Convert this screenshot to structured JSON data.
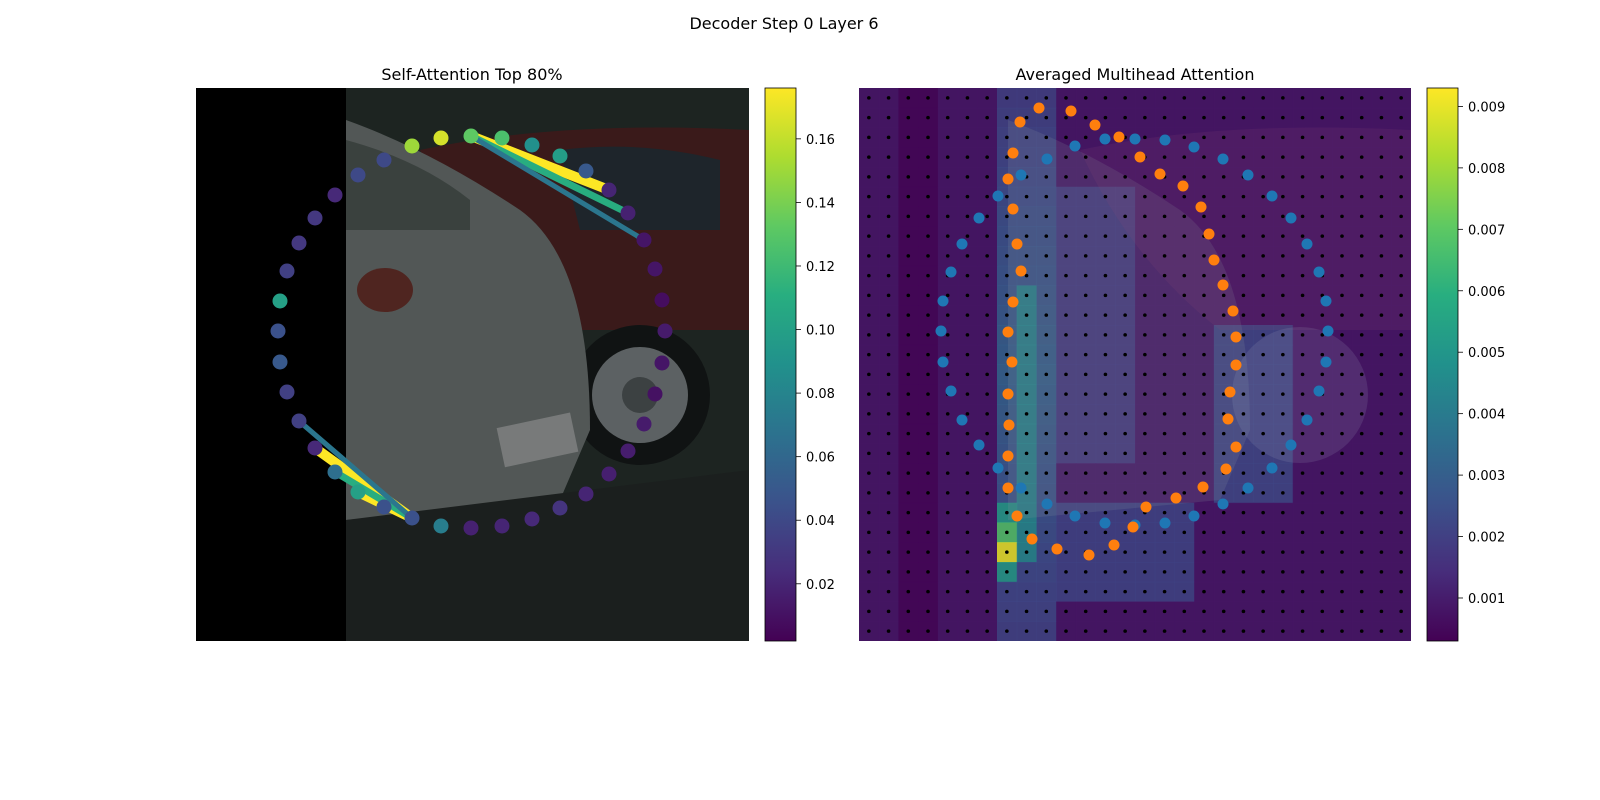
{
  "figure": {
    "suptitle": "Decoder Step 0 Layer 6"
  },
  "chart_data": [
    {
      "type": "scatter",
      "title": "Self-Attention Top 80%",
      "background": "photo of parked cars with a black band on the left",
      "axes_visible": false,
      "colormap": "viridis",
      "colorbar": {
        "ticks": [
          0.02,
          0.04,
          0.06,
          0.08,
          0.1,
          0.12,
          0.14,
          0.16
        ],
        "labels": [
          "0.02",
          "0.04",
          "0.06",
          "0.08",
          "0.10",
          "0.12",
          "0.14",
          "0.16"
        ],
        "range": [
          0.002,
          0.176
        ]
      },
      "image_extent": [
        0,
        880
      ],
      "points": [
        {
          "x": 441,
          "y": 138,
          "v": 0.165
        },
        {
          "x": 471,
          "y": 136,
          "v": 0.132
        },
        {
          "x": 502,
          "y": 138,
          "v": 0.125
        },
        {
          "x": 532,
          "y": 145,
          "v": 0.088
        },
        {
          "x": 560,
          "y": 156,
          "v": 0.098
        },
        {
          "x": 586,
          "y": 171,
          "v": 0.05
        },
        {
          "x": 609,
          "y": 190,
          "v": 0.02
        },
        {
          "x": 628,
          "y": 213,
          "v": 0.018
        },
        {
          "x": 644,
          "y": 240,
          "v": 0.012
        },
        {
          "x": 655,
          "y": 269,
          "v": 0.012
        },
        {
          "x": 662,
          "y": 300,
          "v": 0.008
        },
        {
          "x": 665,
          "y": 331,
          "v": 0.015
        },
        {
          "x": 662,
          "y": 363,
          "v": 0.012
        },
        {
          "x": 655,
          "y": 394,
          "v": 0.01
        },
        {
          "x": 644,
          "y": 424,
          "v": 0.015
        },
        {
          "x": 628,
          "y": 451,
          "v": 0.016
        },
        {
          "x": 609,
          "y": 474,
          "v": 0.017
        },
        {
          "x": 586,
          "y": 494,
          "v": 0.02
        },
        {
          "x": 560,
          "y": 508,
          "v": 0.028
        },
        {
          "x": 532,
          "y": 519,
          "v": 0.022
        },
        {
          "x": 502,
          "y": 526,
          "v": 0.02
        },
        {
          "x": 471,
          "y": 528,
          "v": 0.018
        },
        {
          "x": 441,
          "y": 526,
          "v": 0.075
        },
        {
          "x": 412,
          "y": 518,
          "v": 0.045
        },
        {
          "x": 384,
          "y": 507,
          "v": 0.045
        },
        {
          "x": 358,
          "y": 492,
          "v": 0.1
        },
        {
          "x": 335,
          "y": 472,
          "v": 0.065
        },
        {
          "x": 315,
          "y": 448,
          "v": 0.022
        },
        {
          "x": 299,
          "y": 421,
          "v": 0.035
        },
        {
          "x": 287,
          "y": 392,
          "v": 0.035
        },
        {
          "x": 280,
          "y": 362,
          "v": 0.05
        },
        {
          "x": 278,
          "y": 331,
          "v": 0.045
        },
        {
          "x": 280,
          "y": 301,
          "v": 0.1
        },
        {
          "x": 287,
          "y": 271,
          "v": 0.035
        },
        {
          "x": 299,
          "y": 243,
          "v": 0.03
        },
        {
          "x": 315,
          "y": 218,
          "v": 0.03
        },
        {
          "x": 335,
          "y": 195,
          "v": 0.022
        },
        {
          "x": 358,
          "y": 175,
          "v": 0.04
        },
        {
          "x": 384,
          "y": 160,
          "v": 0.04
        },
        {
          "x": 412,
          "y": 146,
          "v": 0.15
        }
      ],
      "edges": [
        {
          "from": [
            412,
            518
          ],
          "to": [
            358,
            492
          ],
          "v": 0.176
        },
        {
          "from": [
            412,
            518
          ],
          "to": [
            315,
            448
          ],
          "v": 0.176
        },
        {
          "from": [
            412,
            518
          ],
          "to": [
            335,
            472
          ],
          "v": 0.11
        },
        {
          "from": [
            412,
            518
          ],
          "to": [
            299,
            421
          ],
          "v": 0.07
        },
        {
          "from": [
            471,
            136
          ],
          "to": [
            609,
            190
          ],
          "v": 0.176
        },
        {
          "from": [
            471,
            136
          ],
          "to": [
            628,
            213
          ],
          "v": 0.11
        },
        {
          "from": [
            471,
            136
          ],
          "to": [
            644,
            240
          ],
          "v": 0.07
        }
      ]
    },
    {
      "type": "scatter",
      "title": "Averaged Multihead Attention",
      "background": "attention heatmap overlaid on photo",
      "axes_visible": false,
      "colormap": "viridis",
      "colorbar": {
        "ticks": [
          0.001,
          0.002,
          0.003,
          0.004,
          0.005,
          0.006,
          0.007,
          0.008,
          0.009
        ],
        "labels": [
          "0.001",
          "0.002",
          "0.003",
          "0.004",
          "0.005",
          "0.006",
          "0.007",
          "0.008",
          "0.009"
        ],
        "range": [
          0.0003,
          0.0093
        ]
      },
      "grid": {
        "cols": 28,
        "rows": 28
      },
      "series": [
        {
          "color": "#1f77b4",
          "points": [
            [
              1075,
              146
            ],
            [
              1105,
              139
            ],
            [
              1135,
              139
            ],
            [
              1165,
              140
            ],
            [
              1194,
              147
            ],
            [
              1223,
              159
            ],
            [
              1248,
              175
            ],
            [
              1272,
              196
            ],
            [
              1291,
              218
            ],
            [
              1307,
              244
            ],
            [
              1319,
              272
            ],
            [
              1326,
              301
            ],
            [
              1328,
              331
            ],
            [
              1326,
              362
            ],
            [
              1319,
              391
            ],
            [
              1307,
              420
            ],
            [
              1291,
              445
            ],
            [
              1272,
              468
            ],
            [
              1248,
              488
            ],
            [
              1223,
              504
            ],
            [
              1194,
              516
            ],
            [
              1165,
              523
            ],
            [
              1135,
              525
            ],
            [
              1105,
              523
            ],
            [
              1075,
              516
            ],
            [
              1047,
              504
            ],
            [
              1021,
              488
            ],
            [
              998,
              468
            ],
            [
              979,
              445
            ],
            [
              962,
              420
            ],
            [
              951,
              391
            ],
            [
              943,
              362
            ],
            [
              941,
              331
            ],
            [
              943,
              301
            ],
            [
              951,
              272
            ],
            [
              962,
              244
            ],
            [
              979,
              218
            ],
            [
              998,
              196
            ],
            [
              1021,
              175
            ],
            [
              1047,
              159
            ]
          ]
        },
        {
          "color": "#ff7f0e",
          "points": [
            [
              1020,
              122
            ],
            [
              1039,
              108
            ],
            [
              1071,
              111
            ],
            [
              1095,
              125
            ],
            [
              1119,
              137
            ],
            [
              1140,
              157
            ],
            [
              1160,
              174
            ],
            [
              1183,
              186
            ],
            [
              1201,
              207
            ],
            [
              1209,
              234
            ],
            [
              1214,
              260
            ],
            [
              1223,
              285
            ],
            [
              1233,
              311
            ],
            [
              1236,
              337
            ],
            [
              1236,
              365
            ],
            [
              1230,
              392
            ],
            [
              1228,
              419
            ],
            [
              1236,
              447
            ],
            [
              1226,
              469
            ],
            [
              1203,
              487
            ],
            [
              1176,
              498
            ],
            [
              1146,
              507
            ],
            [
              1133,
              527
            ],
            [
              1114,
              545
            ],
            [
              1089,
              555
            ],
            [
              1057,
              549
            ],
            [
              1032,
              539
            ],
            [
              1017,
              516
            ],
            [
              1008,
              488
            ],
            [
              1008,
              456
            ],
            [
              1009,
              425
            ],
            [
              1008,
              394
            ],
            [
              1012,
              362
            ],
            [
              1008,
              332
            ],
            [
              1013,
              302
            ],
            [
              1021,
              271
            ],
            [
              1017,
              244
            ],
            [
              1013,
              209
            ],
            [
              1008,
              179
            ],
            [
              1013,
              153
            ]
          ]
        }
      ]
    }
  ]
}
